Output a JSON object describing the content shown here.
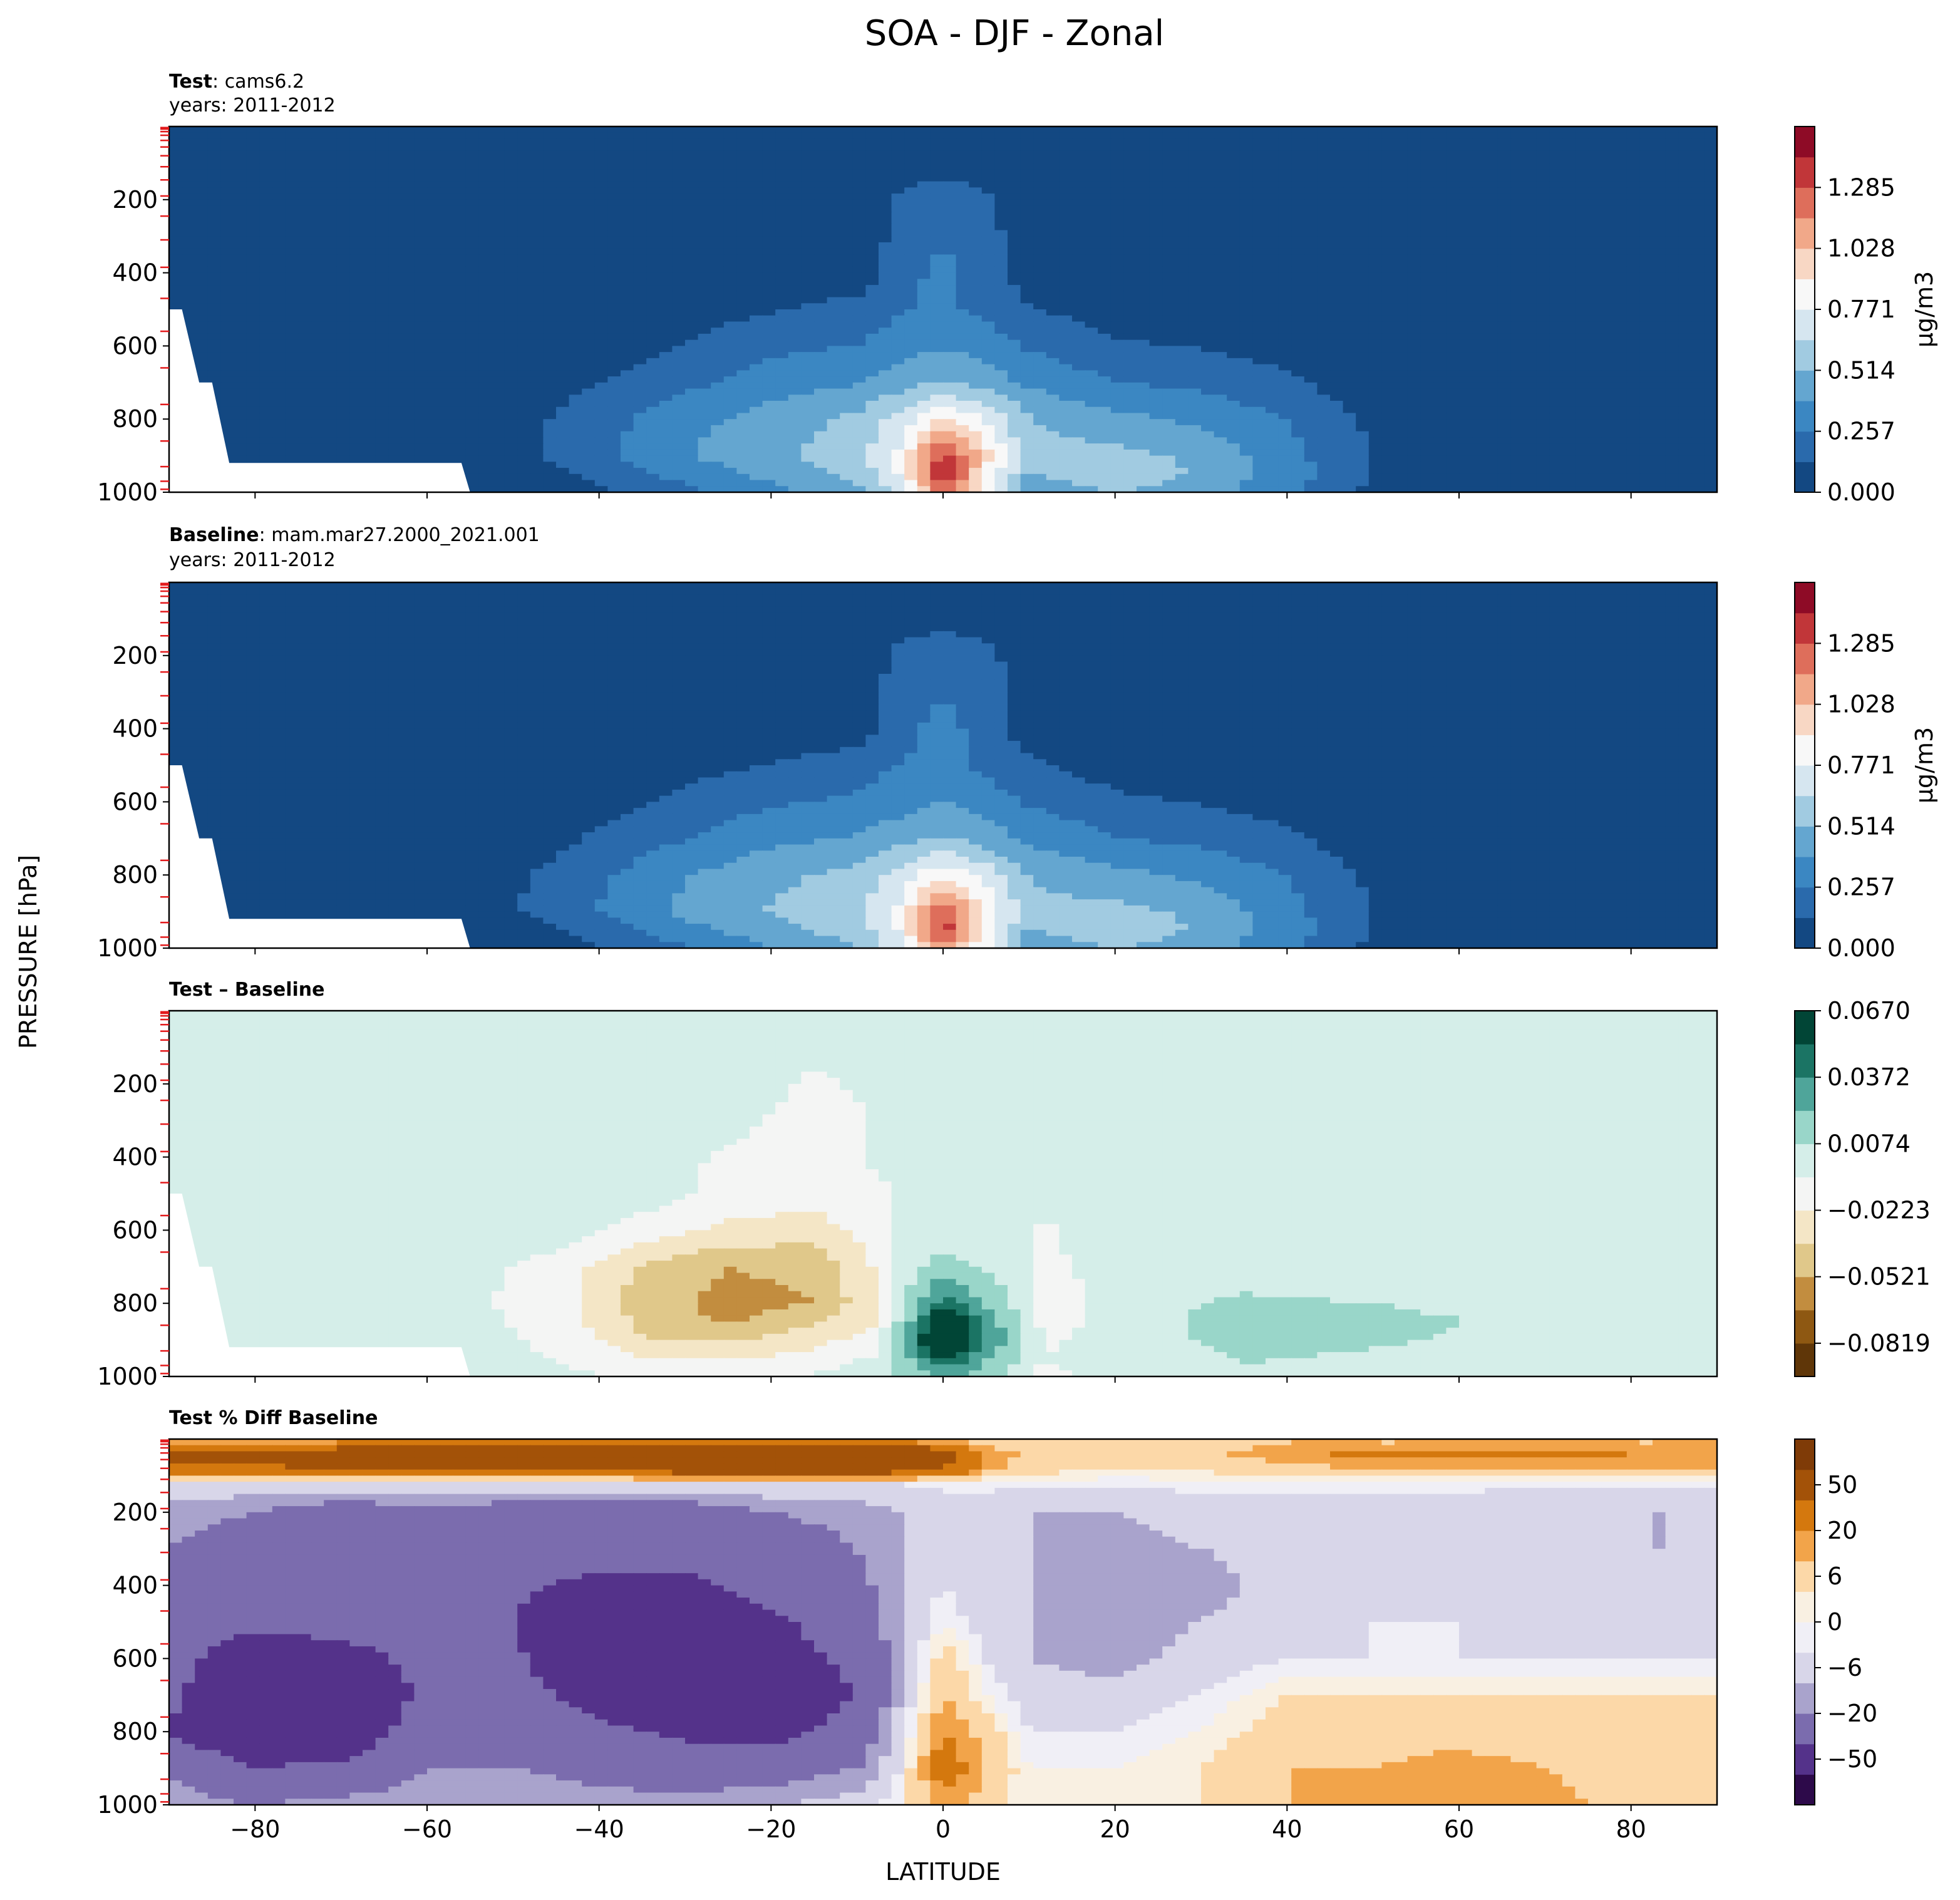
{
  "figure": {
    "title": "SOA - DJF - Zonal",
    "ylabel": "PRESSURE [hPa]",
    "xlabel": "LATITUDE"
  },
  "panels": [
    {
      "id": "test",
      "title_bold": "Test",
      "title_sep": ": ",
      "title_rest": "cams6.2",
      "subtitle": "years: 2011-2012",
      "colorbar_label": "μg/m3",
      "colorbar_ticks": [
        "0.000",
        "0.257",
        "0.514",
        "0.771",
        "1.028",
        "1.285"
      ]
    },
    {
      "id": "baseline",
      "title_bold": "Baseline",
      "title_sep": ": ",
      "title_rest": "mam.mar27.2000_2021.001",
      "subtitle": "years: 2011-2012",
      "colorbar_label": "μg/m3",
      "colorbar_ticks": [
        "0.000",
        "0.257",
        "0.514",
        "0.771",
        "1.028",
        "1.285"
      ]
    },
    {
      "id": "diff",
      "title_bold": "Test – Baseline",
      "title_sep": "",
      "title_rest": "",
      "subtitle": "",
      "colorbar_label": "",
      "colorbar_ticks": [
        "−0.0819",
        "−0.0521",
        "−0.0223",
        "0.0074",
        "0.0372",
        "0.0670"
      ]
    },
    {
      "id": "pctdiff",
      "title_bold": "Test % Diff Baseline",
      "title_sep": "",
      "title_rest": "",
      "subtitle": "",
      "colorbar_label": "",
      "colorbar_ticks": [
        "−50",
        "−20",
        "−6",
        "0",
        "6",
        "20",
        "50"
      ]
    }
  ],
  "colormaps": {
    "concentration": [
      "#134882",
      "#2a6aac",
      "#3b87c2",
      "#64a6d0",
      "#a1cbe1",
      "#d6e6f0",
      "#f8f8f8",
      "#f8d7c4",
      "#f1a889",
      "#de6e5b",
      "#c13639",
      "#8e0b26"
    ],
    "difference": [
      "#5f3608",
      "#8e5812",
      "#c28d3f",
      "#e0c88a",
      "#f4e6c6",
      "#f4f5f4",
      "#d5eee9",
      "#99d6c9",
      "#4fa59a",
      "#1b7464",
      "#014536"
    ],
    "percent": [
      "#2d0a4a",
      "#54328a",
      "#7b6cae",
      "#a9a3cc",
      "#d8d6e9",
      "#f0eff6",
      "#f9f0e2",
      "#fcd8a8",
      "#f2a44a",
      "#d4780e",
      "#a35208",
      "#7f3b07"
    ]
  },
  "chart_data": [
    {
      "type": "heatmap",
      "panel": "test",
      "x": [
        -90,
        -60,
        -45,
        -30,
        -20,
        -10,
        -5,
        0,
        5,
        10,
        20,
        30,
        40,
        50,
        60,
        90
      ],
      "y": [
        10,
        200,
        400,
        500,
        600,
        700,
        800,
        900,
        950,
        1000
      ],
      "z": [
        [
          0,
          0,
          0,
          0,
          0,
          0,
          0,
          0,
          0,
          0,
          0,
          0,
          0,
          0,
          0,
          0
        ],
        [
          0,
          0,
          0,
          0,
          0,
          0.02,
          0.15,
          0.18,
          0.15,
          0.05,
          0,
          0,
          0,
          0,
          0,
          0
        ],
        [
          0,
          0,
          0,
          0,
          0,
          0.04,
          0.2,
          0.3,
          0.2,
          0.05,
          0,
          0,
          0,
          0,
          0,
          0
        ],
        [
          0,
          0,
          0,
          0.06,
          0.12,
          0.18,
          0.25,
          0.28,
          0.22,
          0.14,
          0.06,
          0.03,
          0,
          0,
          0,
          0
        ],
        [
          0,
          0,
          0,
          0.14,
          0.22,
          0.26,
          0.32,
          0.38,
          0.32,
          0.24,
          0.15,
          0.12,
          0.08,
          0,
          0,
          0
        ],
        [
          0,
          0,
          0.08,
          0.22,
          0.32,
          0.38,
          0.45,
          0.52,
          0.45,
          0.36,
          0.26,
          0.22,
          0.15,
          0.05,
          0,
          0
        ],
        [
          0,
          0,
          0.14,
          0.34,
          0.44,
          0.54,
          0.7,
          0.92,
          0.76,
          0.52,
          0.42,
          0.36,
          0.25,
          0.1,
          0.02,
          0
        ],
        [
          0,
          0,
          0.15,
          0.38,
          0.48,
          0.6,
          0.8,
          1.35,
          0.95,
          0.55,
          0.56,
          0.48,
          0.3,
          0.12,
          0.04,
          0
        ],
        [
          0,
          0,
          0.1,
          0.3,
          0.42,
          0.55,
          0.78,
          1.45,
          0.88,
          0.5,
          0.6,
          0.5,
          0.32,
          0.13,
          0.05,
          0
        ],
        [
          0,
          0,
          0.06,
          0.22,
          0.35,
          0.48,
          0.7,
          1.2,
          0.8,
          0.45,
          0.52,
          0.45,
          0.28,
          0.1,
          0.03,
          0
        ]
      ],
      "levels": [
        0,
        0.1285,
        0.257,
        0.3855,
        0.514,
        0.6425,
        0.771,
        0.8995,
        1.028,
        1.1565,
        1.285,
        1.4135
      ],
      "missing_region": "surface below -55",
      "ylim": [
        1000,
        0
      ],
      "xlim": [
        -90,
        90
      ]
    },
    {
      "type": "heatmap",
      "panel": "baseline",
      "x": [
        -90,
        -60,
        -45,
        -30,
        -20,
        -10,
        -5,
        0,
        5,
        10,
        20,
        30,
        40,
        50,
        60,
        90
      ],
      "y": [
        10,
        200,
        400,
        500,
        600,
        700,
        800,
        900,
        950,
        1000
      ],
      "z": [
        [
          0,
          0,
          0,
          0,
          0,
          0,
          0,
          0,
          0,
          0,
          0,
          0,
          0,
          0,
          0,
          0
        ],
        [
          0,
          0,
          0,
          0,
          0,
          0.03,
          0.16,
          0.19,
          0.16,
          0.06,
          0,
          0,
          0,
          0,
          0,
          0
        ],
        [
          0,
          0,
          0,
          0,
          0,
          0.06,
          0.22,
          0.3,
          0.21,
          0.06,
          0,
          0,
          0,
          0,
          0,
          0
        ],
        [
          0,
          0,
          0,
          0.08,
          0.14,
          0.2,
          0.26,
          0.29,
          0.22,
          0.15,
          0.06,
          0.03,
          0,
          0,
          0,
          0
        ],
        [
          0,
          0,
          0.02,
          0.16,
          0.24,
          0.28,
          0.33,
          0.39,
          0.32,
          0.24,
          0.16,
          0.12,
          0.08,
          0,
          0,
          0
        ],
        [
          0,
          0,
          0.1,
          0.25,
          0.35,
          0.4,
          0.46,
          0.52,
          0.45,
          0.36,
          0.26,
          0.22,
          0.15,
          0.05,
          0,
          0
        ],
        [
          0,
          0,
          0.16,
          0.38,
          0.48,
          0.56,
          0.7,
          0.88,
          0.72,
          0.5,
          0.42,
          0.36,
          0.25,
          0.1,
          0.02,
          0
        ],
        [
          0,
          0,
          0.18,
          0.42,
          0.52,
          0.62,
          0.8,
          1.28,
          0.9,
          0.55,
          0.56,
          0.48,
          0.3,
          0.12,
          0.04,
          0
        ],
        [
          0,
          0,
          0.12,
          0.34,
          0.46,
          0.58,
          0.78,
          1.38,
          0.85,
          0.5,
          0.6,
          0.5,
          0.32,
          0.13,
          0.05,
          0
        ],
        [
          0,
          0,
          0.07,
          0.25,
          0.38,
          0.5,
          0.7,
          1.15,
          0.78,
          0.45,
          0.52,
          0.45,
          0.28,
          0.1,
          0.03,
          0
        ]
      ],
      "levels": [
        0,
        0.1285,
        0.257,
        0.3855,
        0.514,
        0.6425,
        0.771,
        0.8995,
        1.028,
        1.1565,
        1.285,
        1.4135
      ],
      "missing_region": "surface below -55",
      "ylim": [
        1000,
        0
      ],
      "xlim": [
        -90,
        90
      ]
    },
    {
      "type": "heatmap",
      "panel": "diff",
      "x": [
        -90,
        -60,
        -45,
        -35,
        -25,
        -15,
        -8,
        -4,
        0,
        4,
        8,
        12,
        16,
        20,
        35,
        90
      ],
      "y": [
        10,
        250,
        400,
        500,
        600,
        700,
        800,
        850,
        900,
        950,
        1000
      ],
      "z": [
        [
          0,
          0,
          0,
          0,
          0,
          0,
          0,
          0,
          0,
          0,
          0,
          0,
          0,
          0,
          0,
          0
        ],
        [
          0,
          0,
          0,
          0,
          0,
          -0.012,
          -0.006,
          0,
          0,
          0,
          0,
          0,
          -0.008,
          0,
          0,
          0
        ],
        [
          0,
          0,
          0,
          0,
          -0.01,
          -0.014,
          -0.006,
          -0.004,
          0,
          0,
          0,
          0,
          0,
          0,
          0,
          0
        ],
        [
          0,
          0,
          0,
          0,
          -0.012,
          -0.016,
          -0.01,
          -0.004,
          0,
          0,
          0,
          0,
          0,
          0,
          0,
          0
        ],
        [
          0,
          0,
          0,
          -0.014,
          -0.026,
          -0.03,
          -0.014,
          -0.004,
          0,
          0,
          0,
          -0.01,
          0,
          0,
          0,
          0
        ],
        [
          0,
          0,
          -0.012,
          -0.04,
          -0.052,
          -0.048,
          -0.022,
          0.002,
          0.014,
          0.006,
          0,
          -0.012,
          -0.006,
          0,
          0,
          0
        ],
        [
          0,
          0,
          -0.014,
          -0.044,
          -0.058,
          -0.052,
          -0.026,
          0.01,
          0.045,
          0.026,
          0.008,
          -0.016,
          -0.01,
          0,
          0.01,
          0
        ],
        [
          0,
          0,
          -0.012,
          -0.042,
          -0.054,
          -0.04,
          -0.024,
          0.02,
          0.082,
          0.04,
          0.012,
          -0.014,
          -0.008,
          0,
          0.014,
          0
        ],
        [
          0,
          0,
          -0.01,
          -0.036,
          -0.04,
          -0.028,
          -0.014,
          0.03,
          0.09,
          0.048,
          0.014,
          -0.01,
          -0.006,
          0,
          0.012,
          0
        ],
        [
          0,
          0,
          -0.008,
          -0.02,
          -0.024,
          -0.016,
          -0.006,
          0.018,
          0.055,
          0.03,
          0.01,
          -0.006,
          -0.004,
          0,
          0.008,
          0
        ],
        [
          0,
          0,
          -0.004,
          -0.01,
          -0.01,
          -0.006,
          0,
          0.01,
          0.026,
          0.014,
          0.004,
          -0.02,
          0,
          0,
          0.006,
          0
        ]
      ],
      "levels": [
        -0.0968,
        -0.0819,
        -0.067,
        -0.0521,
        -0.0372,
        -0.0223,
        -0.0074,
        0.0074,
        0.0223,
        0.0372,
        0.0521,
        0.067,
        0.0819
      ],
      "missing_region": "surface below -55",
      "ylim": [
        1000,
        0
      ],
      "xlim": [
        -90,
        90
      ]
    },
    {
      "type": "heatmap",
      "panel": "pctdiff",
      "x": [
        -90,
        -80,
        -70,
        -60,
        -50,
        -40,
        -30,
        -20,
        -10,
        -5,
        0,
        5,
        10,
        20,
        30,
        40,
        50,
        60,
        70,
        80,
        90
      ],
      "y": [
        10,
        40,
        80,
        120,
        200,
        300,
        400,
        500,
        600,
        700,
        800,
        900,
        1000
      ],
      "z": [
        [
          6,
          8,
          10,
          14,
          14,
          10,
          10,
          14,
          14,
          12,
          8,
          4,
          2,
          2,
          4,
          6,
          6,
          6,
          6,
          6,
          6
        ],
        [
          25,
          28,
          30,
          30,
          30,
          30,
          40,
          40,
          40,
          36,
          26,
          10,
          4,
          3,
          5,
          8,
          12,
          12,
          12,
          10,
          10
        ],
        [
          16,
          18,
          20,
          24,
          24,
          22,
          30,
          34,
          32,
          28,
          20,
          8,
          4,
          2,
          3,
          5,
          6,
          6,
          6,
          6,
          6
        ],
        [
          -2,
          -3,
          -3,
          -3,
          -2,
          -2,
          -2,
          -2,
          -2,
          -2,
          -1,
          -1,
          -1,
          -1,
          -1,
          -1,
          -1,
          -1,
          -1,
          -1,
          -1
        ],
        [
          -8,
          -10,
          -14,
          -12,
          -14,
          -16,
          -14,
          -10,
          -8,
          -6,
          -4,
          -4,
          -6,
          -6,
          -4,
          -4,
          -4,
          -4,
          -6,
          -6,
          -6
        ],
        [
          -10,
          -14,
          -12,
          -10,
          -14,
          -12,
          -16,
          -14,
          -10,
          -6,
          -3,
          -4,
          -6,
          -8,
          -6,
          -4,
          -4,
          -5,
          -6,
          -6,
          -6
        ],
        [
          -12,
          -12,
          -10,
          -12,
          -18,
          -24,
          -22,
          -16,
          -12,
          -6,
          -2,
          -4,
          -6,
          -8,
          -8,
          -4,
          -4,
          -4,
          -4,
          -4,
          -4
        ],
        [
          -10,
          -16,
          -14,
          -12,
          -20,
          -34,
          -30,
          -22,
          -14,
          -6,
          0,
          -4,
          -6,
          -8,
          -6,
          -3,
          -2,
          -2,
          -3,
          -3,
          -3
        ],
        [
          -14,
          -30,
          -26,
          -16,
          -18,
          -30,
          -34,
          -24,
          -18,
          -8,
          4,
          -2,
          -6,
          -8,
          -4,
          -2,
          -2,
          -2,
          -2,
          -2,
          -2
        ],
        [
          -18,
          -34,
          -30,
          -18,
          -16,
          -24,
          -30,
          -26,
          -20,
          -6,
          6,
          0,
          -4,
          -4,
          -2,
          2,
          2,
          2,
          2,
          2,
          2
        ],
        [
          -20,
          -30,
          -28,
          -14,
          -12,
          -18,
          -22,
          -24,
          -16,
          -4,
          10,
          4,
          -2,
          -2,
          0,
          4,
          4,
          4,
          3,
          2,
          2
        ],
        [
          -12,
          -20,
          -18,
          -10,
          -10,
          -12,
          -14,
          -14,
          -10,
          -2,
          14,
          6,
          0,
          0,
          2,
          6,
          6,
          8,
          6,
          3,
          3
        ],
        [
          -6,
          -10,
          -8,
          -6,
          -6,
          -8,
          -8,
          -6,
          -4,
          0,
          8,
          4,
          0,
          0,
          2,
          6,
          6,
          8,
          8,
          4,
          4
        ]
      ],
      "levels": [
        -100,
        -50,
        -20,
        -10,
        -6,
        -2,
        0,
        2,
        6,
        10,
        20,
        50,
        100
      ],
      "ylim": [
        1000,
        0
      ],
      "xlim": [
        -90,
        90
      ]
    }
  ],
  "axes": {
    "y_ticks": [
      "200",
      "400",
      "600",
      "800",
      "1000"
    ],
    "x_ticks": [
      "−80",
      "−60",
      "−40",
      "−20",
      "0",
      "20",
      "40",
      "60",
      "80"
    ],
    "x_tick_values": [
      -80,
      -60,
      -40,
      -20,
      0,
      20,
      40,
      60,
      80
    ],
    "y_tick_values": [
      200,
      400,
      600,
      800,
      1000
    ],
    "model_level_marks_hPa": [
      3,
      7,
      14,
      24,
      38,
      56,
      80,
      110,
      146,
      190,
      245,
      310,
      385,
      470,
      560,
      660,
      760,
      860,
      930,
      970,
      992
    ]
  }
}
